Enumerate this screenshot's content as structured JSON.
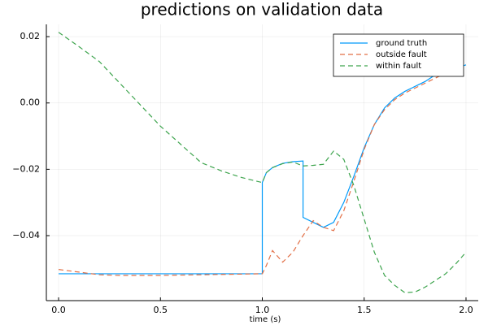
{
  "chart_data": {
    "type": "line",
    "title": "predictions on validation data",
    "xlabel": "time (s)",
    "x": [
      0,
      0.1,
      0.2,
      0.3,
      0.4,
      0.5,
      0.6,
      0.7,
      0.8,
      0.9,
      1.0,
      1.0,
      1.02,
      1.05,
      1.1,
      1.15,
      1.2,
      1.2,
      1.25,
      1.3,
      1.35,
      1.4,
      1.45,
      1.5,
      1.55,
      1.6,
      1.65,
      1.7,
      1.75,
      1.8,
      1.85,
      1.9,
      1.95,
      2.0
    ],
    "series": [
      {
        "name": "ground truth",
        "color": "#009af9",
        "linestyle": "solid",
        "values": [
          -0.0515,
          -0.0515,
          -0.0515,
          -0.0515,
          -0.0515,
          -0.0515,
          -0.0515,
          -0.0515,
          -0.0515,
          -0.0515,
          -0.0515,
          -0.024,
          -0.021,
          -0.0195,
          -0.0182,
          -0.0177,
          -0.0175,
          -0.0345,
          -0.036,
          -0.0375,
          -0.036,
          -0.03,
          -0.022,
          -0.0135,
          -0.0065,
          -0.0015,
          0.0015,
          0.0035,
          0.005,
          0.0065,
          0.0085,
          0.0095,
          0.0105,
          0.0115
        ]
      },
      {
        "name": "outside fault",
        "color": "#e26f46",
        "linestyle": "dash",
        "values": [
          -0.0502,
          -0.051,
          -0.0518,
          -0.052,
          -0.052,
          -0.052,
          -0.0519,
          -0.0518,
          -0.0517,
          -0.0516,
          -0.0515,
          -0.0515,
          -0.049,
          -0.0445,
          -0.048,
          -0.045,
          -0.04,
          -0.04,
          -0.0355,
          -0.0375,
          -0.0385,
          -0.0325,
          -0.0235,
          -0.014,
          -0.0065,
          -0.002,
          0.001,
          0.003,
          0.0045,
          0.006,
          0.0075,
          0.009,
          0.0095,
          0.0105
        ]
      },
      {
        "name": "within fault",
        "color": "#3da44d",
        "linestyle": "dash",
        "values": [
          0.0213,
          0.017,
          0.0125,
          0.006,
          -0.0005,
          -0.007,
          -0.0125,
          -0.018,
          -0.0205,
          -0.0225,
          -0.024,
          -0.024,
          -0.021,
          -0.0195,
          -0.0183,
          -0.0178,
          -0.019,
          -0.019,
          -0.0188,
          -0.0185,
          -0.0145,
          -0.017,
          -0.025,
          -0.035,
          -0.045,
          -0.052,
          -0.055,
          -0.0572,
          -0.057,
          -0.0555,
          -0.0535,
          -0.0515,
          -0.0485,
          -0.045
        ]
      }
    ],
    "xlim": [
      -0.06,
      2.06
    ],
    "xticks": [
      {
        "value": 0,
        "label": "0.0"
      },
      0.5,
      {
        "value": 1,
        "label": "1.0"
      },
      1.5,
      {
        "value": 2,
        "label": "2.0"
      }
    ],
    "ylim": [
      -0.0596,
      0.0237
    ],
    "yticks": [
      {
        "value": -0.04,
        "label": "−0.04"
      },
      {
        "value": -0.02,
        "label": "−0.02"
      },
      {
        "value": 0,
        "label": "0.00"
      },
      0.02
    ],
    "grid": true,
    "legend": "top-right"
  }
}
